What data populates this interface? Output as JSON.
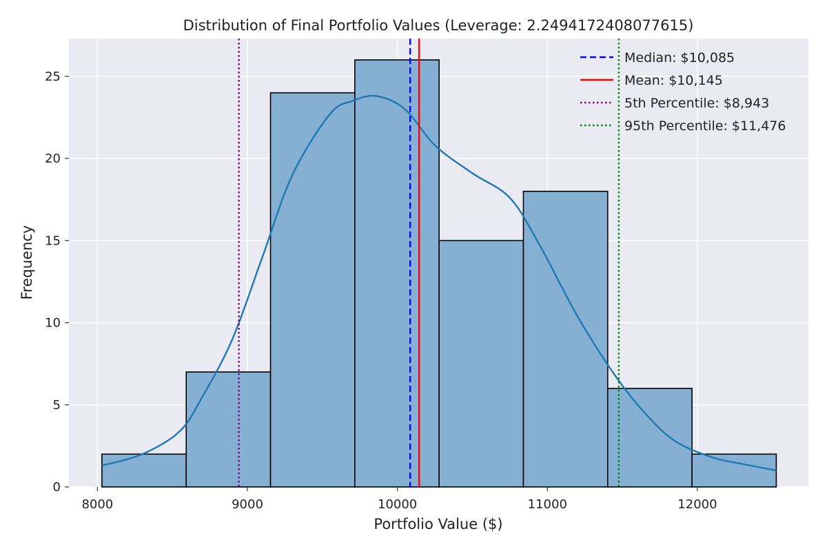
{
  "chart_data": {
    "type": "bar",
    "title": "Distribution of Final Portfolio Values (Leverage: 2.2494172408077615)",
    "xlabel": "Portfolio Value ($)",
    "ylabel": "Frequency",
    "xlim": [
      7810,
      12740
    ],
    "ylim": [
      0,
      27.3
    ],
    "xticks": [
      8000,
      9000,
      10000,
      11000,
      12000
    ],
    "yticks": [
      0,
      5,
      10,
      15,
      20,
      25
    ],
    "grid": true,
    "legend_position": "top-right",
    "bins": [
      {
        "x0": 8030,
        "x1": 8592,
        "count": 2
      },
      {
        "x0": 8592,
        "x1": 9154,
        "count": 7
      },
      {
        "x0": 9154,
        "x1": 9716,
        "count": 24
      },
      {
        "x0": 9716,
        "x1": 10278,
        "count": 26
      },
      {
        "x0": 10278,
        "x1": 10840,
        "count": 15
      },
      {
        "x0": 10840,
        "x1": 11402,
        "count": 18
      },
      {
        "x0": 11402,
        "x1": 11964,
        "count": 6
      },
      {
        "x0": 11964,
        "x1": 12526,
        "count": 2
      }
    ],
    "kde": {
      "color": "#1f77b4",
      "x": [
        8030,
        8300,
        8550,
        8700,
        8900,
        9100,
        9300,
        9550,
        9700,
        9860,
        10050,
        10250,
        10500,
        10750,
        10950,
        11200,
        11450,
        11650,
        11850,
        12100,
        12300,
        12526
      ],
      "y": [
        1.3,
        2.0,
        3.4,
        5.5,
        9.0,
        14.0,
        19.0,
        22.7,
        23.5,
        23.8,
        23.0,
        20.8,
        19.1,
        17.6,
        14.7,
        10.4,
        6.8,
        4.5,
        2.8,
        1.8,
        1.4,
        1.0
      ]
    },
    "reference_lines": [
      {
        "label": "Median: $10,085",
        "x": 10085,
        "color": "#0000ff",
        "style": "dashed"
      },
      {
        "label": "Mean: $10,145",
        "x": 10145,
        "color": "#ff0000",
        "style": "solid"
      },
      {
        "label": "5th Percentile: $8,943",
        "x": 8943,
        "color": "#800080",
        "style": "dotted"
      },
      {
        "label": "95th Percentile: $11,476",
        "x": 11476,
        "color": "#008000",
        "style": "dotted"
      }
    ],
    "colors": {
      "bar_fill": "#85b0d3",
      "bar_edge": "#000000",
      "background": "#eaeaf2"
    }
  }
}
